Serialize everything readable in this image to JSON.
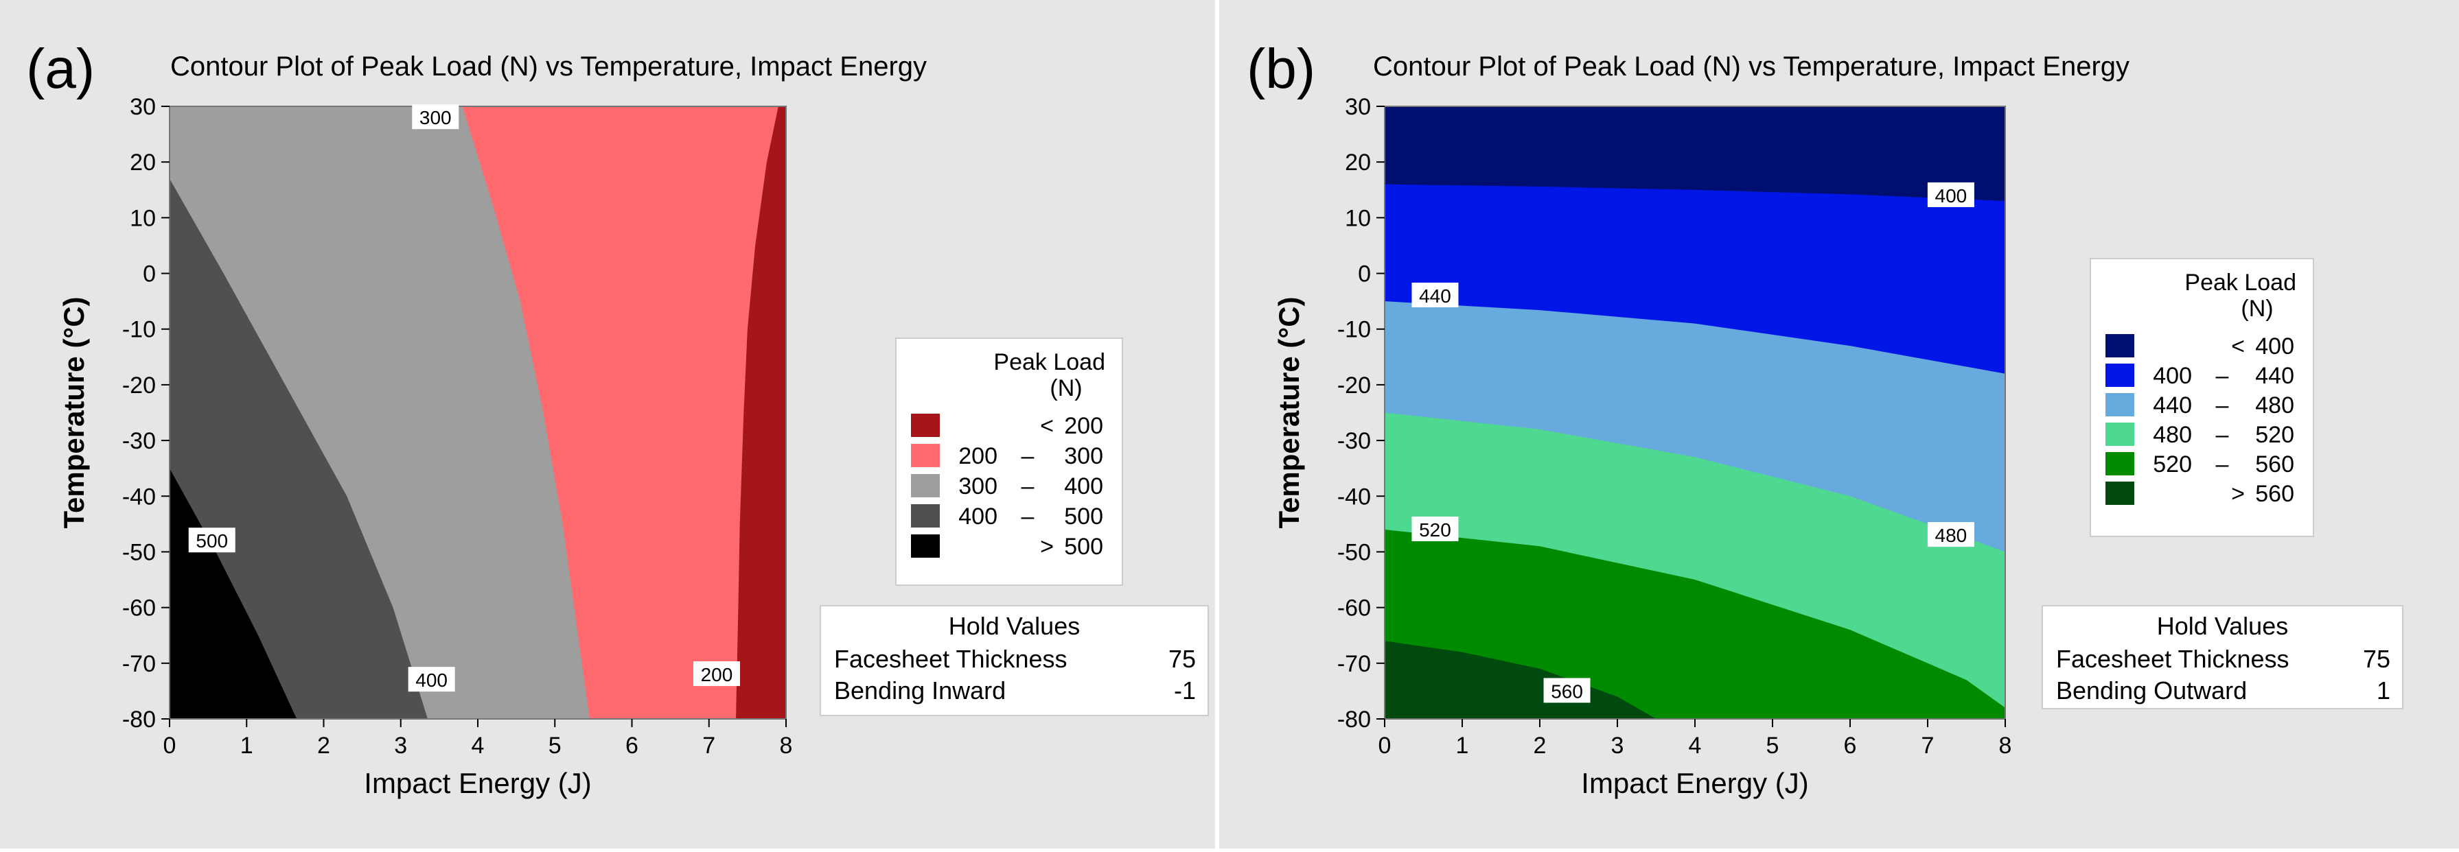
{
  "chart_data": [
    {
      "type": "contour",
      "panel_label": "(a)",
      "title": "Contour Plot of Peak Load (N) vs Temperature, Impact Energy",
      "xlabel": "Impact Energy (J)",
      "ylabel": "Temperature (°C)",
      "xlim": [
        0,
        8
      ],
      "ylim": [
        -80,
        30
      ],
      "x_ticks": [
        0,
        1,
        2,
        3,
        4,
        5,
        6,
        7,
        8
      ],
      "y_ticks": [
        30,
        20,
        10,
        0,
        -10,
        -20,
        -30,
        -40,
        -50,
        -60,
        -70,
        -80
      ],
      "legend": {
        "title_line1": "Peak Load",
        "title_line2": "(N)",
        "items": [
          {
            "op": "<",
            "lo": "",
            "dash": "",
            "hi": "200",
            "color": "#a4161a"
          },
          {
            "op": "",
            "lo": "200",
            "dash": "–",
            "hi": "300",
            "color": "#ff6a6e"
          },
          {
            "op": "",
            "lo": "300",
            "dash": "–",
            "hi": "400",
            "color": "#9e9e9e"
          },
          {
            "op": "",
            "lo": "400",
            "dash": "–",
            "hi": "500",
            "color": "#505050"
          },
          {
            "op": ">",
            "lo": "",
            "dash": "",
            "hi": "500",
            "color": "#000000"
          }
        ]
      },
      "hold_values": {
        "title": "Hold Values",
        "rows": [
          {
            "label": "Facesheet Thickness",
            "value": "75"
          },
          {
            "label": "Bending Inward",
            "value": "-1"
          }
        ]
      },
      "background_color": "#a4161a",
      "regions": [
        {
          "level": "200 – 300",
          "color": "#ff6a6e",
          "boundary": [
            [
              0,
              30
            ],
            [
              7.9,
              30
            ],
            [
              7.75,
              20
            ],
            [
              7.6,
              5
            ],
            [
              7.5,
              -10
            ],
            [
              7.45,
              -25
            ],
            [
              7.4,
              -45
            ],
            [
              7.38,
              -60
            ],
            [
              7.35,
              -80
            ],
            [
              0,
              -80
            ]
          ]
        },
        {
          "level": "300 – 400",
          "color": "#9e9e9e",
          "boundary": [
            [
              0,
              30
            ],
            [
              3.8,
              30
            ],
            [
              4.2,
              12
            ],
            [
              4.55,
              -5
            ],
            [
              4.85,
              -25
            ],
            [
              5.1,
              -45
            ],
            [
              5.3,
              -65
            ],
            [
              5.45,
              -80
            ],
            [
              0,
              -80
            ]
          ]
        },
        {
          "level": "400 – 500",
          "color": "#505050",
          "boundary": [
            [
              0,
              17
            ],
            [
              0.7,
              0
            ],
            [
              1.5,
              -20
            ],
            [
              2.3,
              -40
            ],
            [
              2.9,
              -60
            ],
            [
              3.35,
              -80
            ],
            [
              0,
              -80
            ]
          ]
        },
        {
          "level": "> 500",
          "color": "#000000",
          "boundary": [
            [
              0,
              -35
            ],
            [
              0.6,
              -50
            ],
            [
              1.15,
              -65
            ],
            [
              1.65,
              -80
            ],
            [
              0,
              -80
            ]
          ]
        }
      ],
      "contour_labels": [
        {
          "text": "300",
          "x": 3.45,
          "y": 28
        },
        {
          "text": "500",
          "x": 0.55,
          "y": -48
        },
        {
          "text": "400",
          "x": 3.4,
          "y": -73
        },
        {
          "text": "200",
          "x": 7.1,
          "y": -72
        }
      ]
    },
    {
      "type": "contour",
      "panel_label": "(b)",
      "title": "Contour Plot of Peak Load (N) vs Temperature, Impact Energy",
      "xlabel": "Impact Energy (J)",
      "ylabel": "Temperature (°C)",
      "xlim": [
        0,
        8
      ],
      "ylim": [
        -80,
        30
      ],
      "x_ticks": [
        0,
        1,
        2,
        3,
        4,
        5,
        6,
        7,
        8
      ],
      "y_ticks": [
        30,
        20,
        10,
        0,
        -10,
        -20,
        -30,
        -40,
        -50,
        -60,
        -70,
        -80
      ],
      "legend": {
        "title_line1": "Peak Load",
        "title_line2": "(N)",
        "items": [
          {
            "op": "<",
            "lo": "",
            "dash": "",
            "hi": "400",
            "color": "#000e70"
          },
          {
            "op": "",
            "lo": "400",
            "dash": "–",
            "hi": "440",
            "color": "#0016e6"
          },
          {
            "op": "",
            "lo": "440",
            "dash": "–",
            "hi": "480",
            "color": "#67aadd"
          },
          {
            "op": "",
            "lo": "480",
            "dash": "–",
            "hi": "520",
            "color": "#4fd890"
          },
          {
            "op": "",
            "lo": "520",
            "dash": "–",
            "hi": "560",
            "color": "#008a00"
          },
          {
            "op": ">",
            "lo": "",
            "dash": "",
            "hi": "560",
            "color": "#004a10"
          }
        ]
      },
      "hold_values": {
        "title": "Hold Values",
        "rows": [
          {
            "label": "Facesheet Thickness",
            "value": "75"
          },
          {
            "label": "Bending Outward",
            "value": "1"
          }
        ]
      },
      "background_color": "#000e70",
      "regions": [
        {
          "level": "400 – 440",
          "color": "#0016e6",
          "boundary": [
            [
              0,
              -80
            ],
            [
              0,
              16
            ],
            [
              2,
              15.6
            ],
            [
              4,
              15
            ],
            [
              6,
              14.2
            ],
            [
              8,
              13
            ],
            [
              8,
              -80
            ]
          ]
        },
        {
          "level": "440 – 480",
          "color": "#67aadd",
          "boundary": [
            [
              0,
              -80
            ],
            [
              0,
              -5
            ],
            [
              2,
              -6.6
            ],
            [
              4,
              -9
            ],
            [
              6,
              -13
            ],
            [
              8,
              -18
            ],
            [
              8,
              -80
            ]
          ]
        },
        {
          "level": "480 – 520",
          "color": "#4fd890",
          "boundary": [
            [
              0,
              -80
            ],
            [
              0,
              -25
            ],
            [
              2,
              -28
            ],
            [
              4,
              -33
            ],
            [
              6,
              -40
            ],
            [
              8,
              -50
            ],
            [
              8,
              -80
            ]
          ]
        },
        {
          "level": "520 – 560",
          "color": "#008a00",
          "boundary": [
            [
              0,
              -80
            ],
            [
              0,
              -46
            ],
            [
              2,
              -49
            ],
            [
              4,
              -55
            ],
            [
              6,
              -64
            ],
            [
              7.5,
              -73
            ],
            [
              8,
              -78
            ],
            [
              8,
              -80
            ]
          ]
        },
        {
          "level": "> 560",
          "color": "#004a10",
          "boundary": [
            [
              0,
              -80
            ],
            [
              0,
              -66
            ],
            [
              1,
              -68
            ],
            [
              2,
              -71
            ],
            [
              3,
              -76
            ],
            [
              3.5,
              -80
            ]
          ]
        }
      ],
      "contour_labels": [
        {
          "text": "400",
          "x": 7.3,
          "y": 14
        },
        {
          "text": "440",
          "x": 0.65,
          "y": -4
        },
        {
          "text": "520",
          "x": 0.65,
          "y": -46
        },
        {
          "text": "480",
          "x": 7.3,
          "y": -47
        },
        {
          "text": "560",
          "x": 2.35,
          "y": -75
        }
      ]
    }
  ]
}
